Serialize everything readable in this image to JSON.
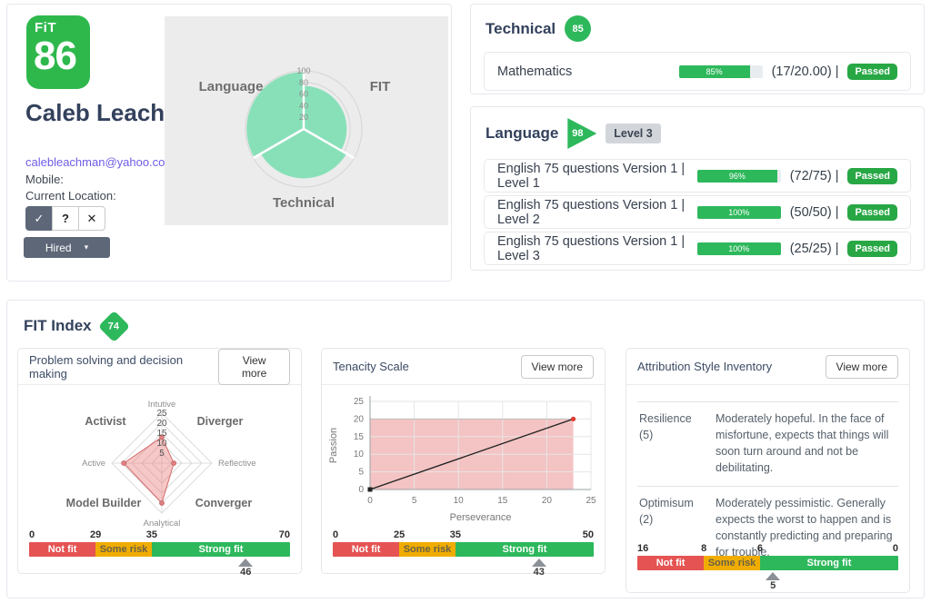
{
  "profile": {
    "badge": {
      "logo": "FiT",
      "score": "86"
    },
    "name": "Caleb Leachman",
    "email": "calebleachman@yahoo.com",
    "mobile_label": "Mobile:",
    "location_label": "Current Location:",
    "decision": {
      "approve_icon": "✓",
      "maybe_icon": "?",
      "reject_icon": "✕"
    },
    "status": {
      "label": "Hired",
      "caret": "▾"
    }
  },
  "technical": {
    "title": "Technical",
    "score": "85",
    "rows": [
      {
        "label": "Mathematics",
        "percent": 85,
        "percent_label": "85%",
        "score_text": "(17/20.00) |",
        "status": "Passed"
      }
    ]
  },
  "language": {
    "title": "Language",
    "score": "98",
    "level": "Level 3",
    "rows": [
      {
        "label": "English 75 questions Version 1 | Level 1",
        "percent": 96,
        "percent_label": "96%",
        "score_text": "(72/75) |",
        "status": "Passed"
      },
      {
        "label": "English 75 questions Version 1 | Level 2",
        "percent": 100,
        "percent_label": "100%",
        "score_text": "(50/50) |",
        "status": "Passed"
      },
      {
        "label": "English 75 questions Version 1 | Level 3",
        "percent": 100,
        "percent_label": "100%",
        "score_text": "(25/25) |",
        "status": "Passed"
      }
    ]
  },
  "fit_index": {
    "title": "FIT Index",
    "score": "74"
  },
  "cards": [
    {
      "title": "Problem solving and decision making",
      "action": "View more",
      "scale": {
        "segments": [
          {
            "label": "Not fit",
            "width_pct": 25.5,
            "color": "#e55353",
            "text_color": "#ffffff"
          },
          {
            "label": "Some risk",
            "width_pct": 21.5,
            "color": "#f0ad00",
            "text_color": "#6a6147"
          },
          {
            "label": "Strong fit",
            "width_pct": 53,
            "color": "#2eb85c",
            "text_color": "#ffffff"
          }
        ],
        "tick_labels": [
          "0",
          "29",
          "35",
          "70"
        ],
        "tick_pcts": [
          0,
          25.5,
          47,
          100
        ],
        "pointer_value": "46",
        "pointer_pct": 83
      }
    },
    {
      "title": "Tenacity Scale",
      "action": "View more",
      "scale": {
        "segments": [
          {
            "label": "Not fit",
            "width_pct": 25.5,
            "color": "#e55353",
            "text_color": "#ffffff"
          },
          {
            "label": "Some risk",
            "width_pct": 21.5,
            "color": "#f0ad00",
            "text_color": "#6a6147"
          },
          {
            "label": "Strong fit",
            "width_pct": 53,
            "color": "#2eb85c",
            "text_color": "#ffffff"
          }
        ],
        "tick_labels": [
          "0",
          "25",
          "35",
          "50"
        ],
        "tick_pcts": [
          0,
          25.5,
          47,
          100
        ],
        "pointer_value": "43",
        "pointer_pct": 79
      }
    },
    {
      "title": "Attribution Style Inventory",
      "action": "View more",
      "rows": [
        {
          "term": "Resilience",
          "score": "(5)",
          "desc": "Moderately hopeful. In the face of misfortune, expects that things will soon turn around and not be debilitating."
        },
        {
          "term": "Optimisum",
          "score": "(2)",
          "desc": "Moderately pessimistic. Generally expects the worst to happen and is constantly predicting and preparing for trouble."
        }
      ],
      "scale": {
        "segments": [
          {
            "label": "Not fit",
            "width_pct": 25.5,
            "color": "#e55353",
            "text_color": "#ffffff"
          },
          {
            "label": "Some risk",
            "width_pct": 21.5,
            "color": "#f0ad00",
            "text_color": "#6a6147"
          },
          {
            "label": "Strong fit",
            "width_pct": 53,
            "color": "#2eb85c",
            "text_color": "#ffffff"
          }
        ],
        "tick_labels": [
          "16",
          "8",
          "6",
          "0"
        ],
        "tick_pcts": [
          0,
          25.5,
          47,
          100
        ],
        "pointer_value": "5",
        "pointer_pct": 52
      }
    }
  ],
  "chart_data": [
    {
      "type": "polar-area",
      "categories": [
        "Language",
        "FIT",
        "Technical"
      ],
      "values": [
        98,
        74,
        85
      ],
      "rmax": 100,
      "rticks": [
        20,
        40,
        60,
        80,
        100
      ],
      "fill": "#7ddfb4",
      "bg": "#ececec",
      "legend_position": "none",
      "grid": true
    },
    {
      "type": "radar",
      "axes": [
        "Intutive",
        "Reflective",
        "Analytical",
        "Active"
      ],
      "values": [
        13,
        6,
        20,
        19
      ],
      "rmax": 25,
      "rticks": [
        5,
        10,
        15,
        20,
        25
      ],
      "corner_labels": [
        "Activist",
        "Diverger",
        "Model Builder",
        "Converger"
      ],
      "fill": "rgba(232,118,118,0.4)",
      "stroke": "#d66a6a"
    },
    {
      "type": "line",
      "x": [
        0,
        23
      ],
      "y": [
        0,
        20
      ],
      "xlabel": "Perseverance",
      "ylabel": "Passion",
      "xlim": [
        0,
        25
      ],
      "ylim": [
        0,
        25
      ],
      "xticks": [
        0,
        5,
        10,
        15,
        20,
        25
      ],
      "yticks": [
        0,
        5,
        10,
        15,
        20,
        25
      ],
      "area_fill": "rgba(228,112,112,0.42)",
      "grid": true
    }
  ],
  "colors": {
    "accent_green": "#2eb85c",
    "passed_green": "#28a745",
    "scale_red": "#e55353",
    "scale_yellow": "#f0ad00",
    "polar_mint": "#7ddfb4",
    "slate_button": "#5d6778",
    "heading": "#33415c",
    "link": "#6e5ce6"
  }
}
